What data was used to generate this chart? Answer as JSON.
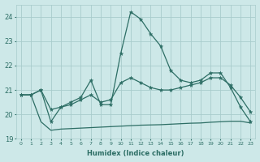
{
  "xlabel": "Humidex (Indice chaleur)",
  "background_color": "#cde8e8",
  "grid_color": "#a8cccc",
  "line_color": "#2d6e65",
  "xlim": [
    -0.5,
    23.5
  ],
  "ylim": [
    19.0,
    24.5
  ],
  "yticks": [
    19,
    20,
    21,
    22,
    23,
    24
  ],
  "xtick_labels": [
    "0",
    "1",
    "2",
    "3",
    "4",
    "5",
    "6",
    "7",
    "8",
    "9",
    "10",
    "11",
    "12",
    "13",
    "14",
    "15",
    "16",
    "17",
    "18",
    "19",
    "20",
    "21",
    "22",
    "23"
  ],
  "series1_x": [
    0,
    1,
    2,
    3,
    4,
    5,
    6,
    7,
    8,
    9,
    10,
    11,
    12,
    13,
    14,
    15,
    16,
    17,
    18,
    19,
    20,
    21,
    22,
    23
  ],
  "series1_y": [
    20.8,
    20.8,
    21.0,
    19.7,
    20.3,
    20.5,
    20.7,
    21.4,
    20.4,
    20.4,
    22.5,
    24.2,
    23.9,
    23.3,
    22.8,
    21.8,
    21.4,
    21.3,
    21.4,
    21.7,
    21.7,
    21.1,
    20.3,
    19.7
  ],
  "series2_x": [
    0,
    1,
    2,
    3,
    4,
    5,
    6,
    7,
    8,
    9,
    10,
    11,
    12,
    13,
    14,
    15,
    16,
    17,
    18,
    19,
    20,
    21,
    22,
    23
  ],
  "series2_y": [
    20.8,
    20.8,
    21.0,
    20.2,
    20.3,
    20.4,
    20.6,
    20.8,
    20.5,
    20.6,
    21.3,
    21.5,
    21.3,
    21.1,
    21.0,
    21.0,
    21.1,
    21.2,
    21.3,
    21.5,
    21.5,
    21.2,
    20.7,
    20.1
  ],
  "series3_x": [
    0,
    1,
    2,
    3,
    4,
    5,
    6,
    7,
    8,
    9,
    10,
    11,
    12,
    13,
    14,
    15,
    16,
    17,
    18,
    19,
    20,
    21,
    22,
    23
  ],
  "series3_y": [
    20.8,
    20.8,
    19.7,
    19.35,
    19.4,
    19.42,
    19.44,
    19.46,
    19.48,
    19.5,
    19.52,
    19.54,
    19.56,
    19.57,
    19.58,
    19.6,
    19.62,
    19.64,
    19.65,
    19.68,
    19.7,
    19.72,
    19.72,
    19.65
  ]
}
